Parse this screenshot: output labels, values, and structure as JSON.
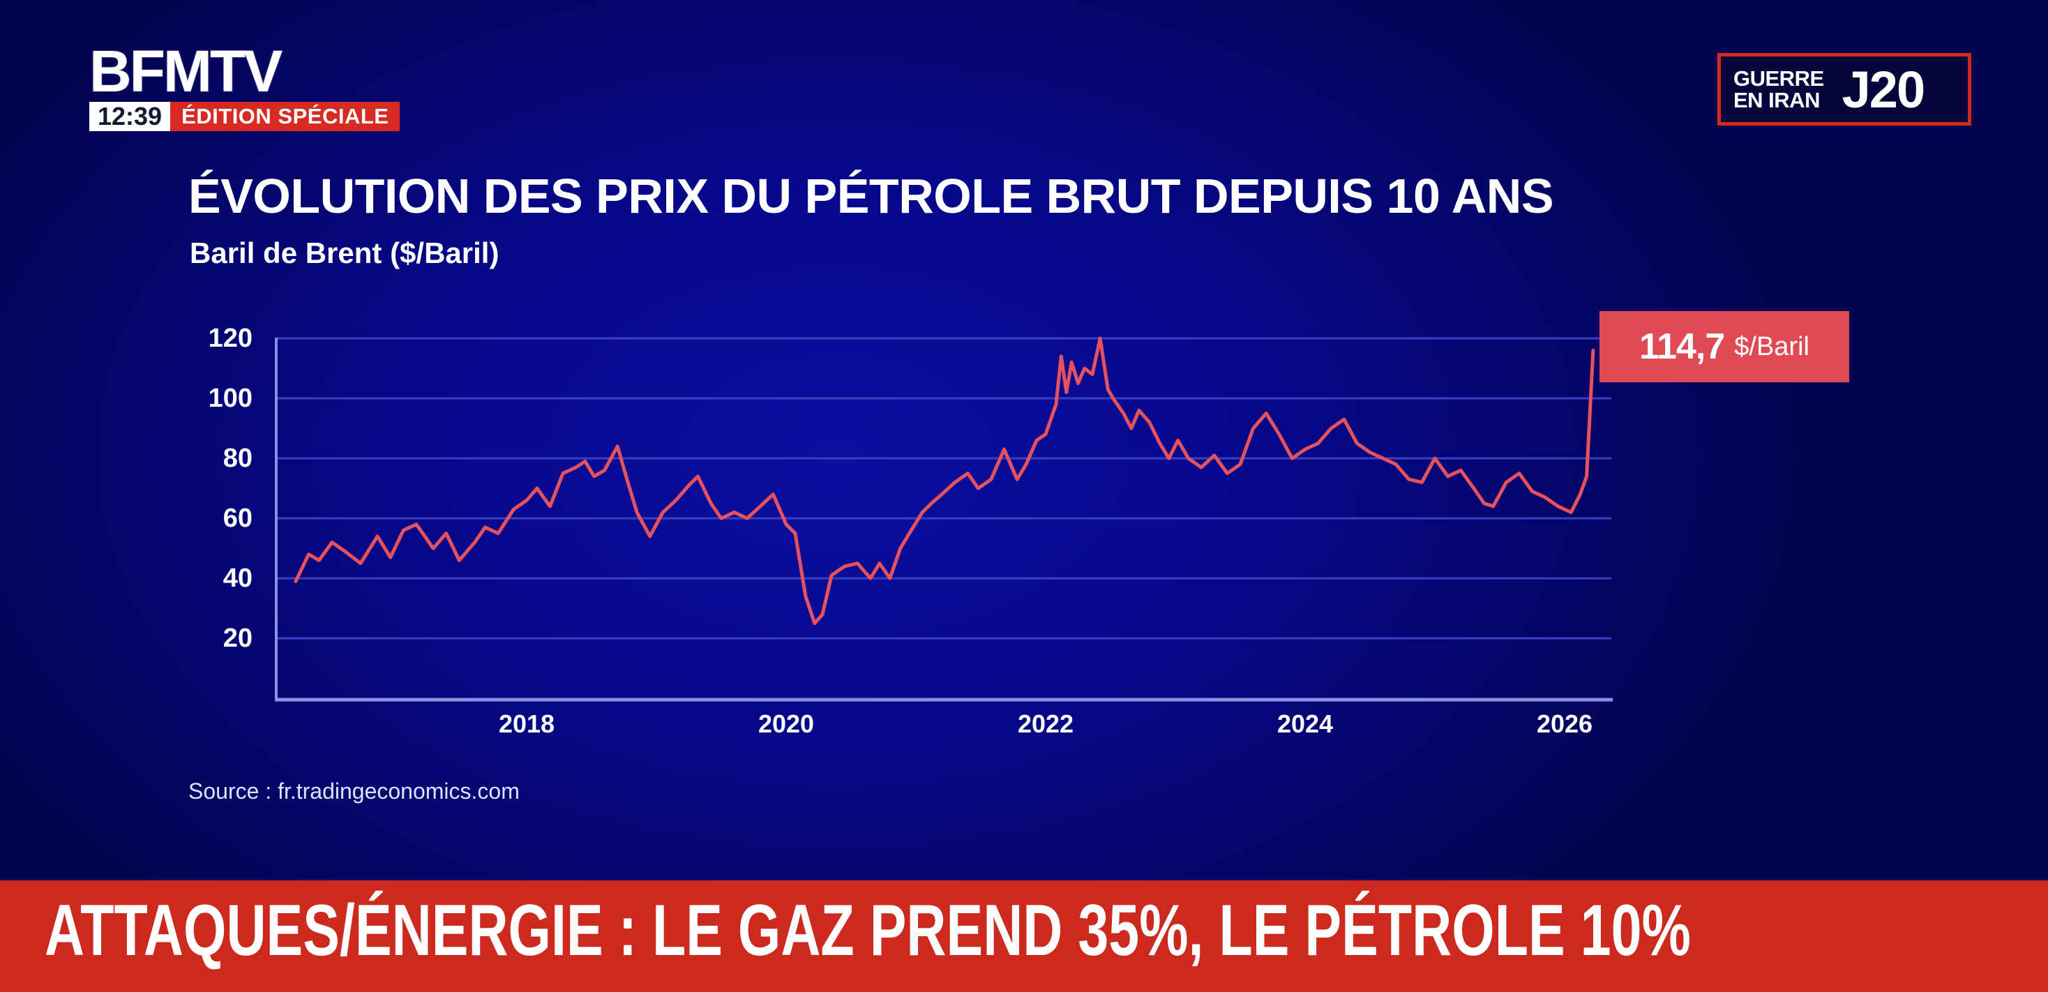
{
  "header": {
    "logo": "BFMTV",
    "clock": "12:39",
    "edition": "ÉDITION SPÉCIALE",
    "badge_line1": "GUERRE",
    "badge_line2": "EN IRAN",
    "badge_day": "J20"
  },
  "title": "ÉVOLUTION DES PRIX DU PÉTROLE BRUT DEPUIS 10 ANS",
  "subtitle": "Baril de Brent ($/Baril)",
  "callout": {
    "value": "114,7",
    "unit": "$/Baril"
  },
  "source": "Source : fr.tradingeconomics.com",
  "banner": {
    "text": "ATTAQUES/ÉNERGIE : LE GAZ PREND 35%, LE PÉTROLE 10%"
  },
  "colors": {
    "line": "#e5525c",
    "callout": "#e04a55",
    "banner": "#cc2a1e",
    "edition": "#d72a22",
    "grid": "#3a3fc0",
    "axis": "#8d90e0"
  },
  "chart_data": {
    "type": "line",
    "title": "ÉVOLUTION DES PRIX DU PÉTROLE BRUT DEPUIS 10 ANS",
    "subtitle": "Baril de Brent ($/Baril)",
    "xlabel": "",
    "ylabel": "$/Baril",
    "ylim": [
      0,
      120
    ],
    "yticks": [
      20,
      40,
      60,
      80,
      100,
      120
    ],
    "xticks": [
      "2018",
      "2020",
      "2022",
      "2024",
      "2026"
    ],
    "grid": true,
    "legend": "none",
    "annotation": "114,7 $/Baril",
    "series": [
      {
        "name": "Brent",
        "x": [
          2016.22,
          2016.32,
          2016.4,
          2016.5,
          2016.6,
          2016.72,
          2016.85,
          2016.95,
          2017.05,
          2017.15,
          2017.28,
          2017.38,
          2017.48,
          2017.6,
          2017.68,
          2017.78,
          2017.9,
          2018.0,
          2018.08,
          2018.18,
          2018.28,
          2018.38,
          2018.45,
          2018.52,
          2018.6,
          2018.7,
          2018.78,
          2018.85,
          2018.95,
          2019.05,
          2019.15,
          2019.25,
          2019.32,
          2019.42,
          2019.5,
          2019.6,
          2019.7,
          2019.8,
          2019.9,
          2020.0,
          2020.07,
          2020.15,
          2020.22,
          2020.28,
          2020.35,
          2020.45,
          2020.55,
          2020.65,
          2020.72,
          2020.8,
          2020.88,
          2020.95,
          2021.05,
          2021.12,
          2021.2,
          2021.3,
          2021.4,
          2021.48,
          2021.58,
          2021.68,
          2021.78,
          2021.85,
          2021.93,
          2022.0,
          2022.08,
          2022.12,
          2022.16,
          2022.2,
          2022.25,
          2022.3,
          2022.36,
          2022.42,
          2022.48,
          2022.52,
          2022.6,
          2022.66,
          2022.72,
          2022.8,
          2022.88,
          2022.95,
          2023.02,
          2023.1,
          2023.2,
          2023.3,
          2023.4,
          2023.5,
          2023.6,
          2023.7,
          2023.8,
          2023.9,
          2024.0,
          2024.1,
          2024.2,
          2024.3,
          2024.4,
          2024.5,
          2024.6,
          2024.7,
          2024.8,
          2024.9,
          2025.0,
          2025.1,
          2025.2,
          2025.3,
          2025.38,
          2025.45,
          2025.55,
          2025.65,
          2025.75,
          2025.85,
          2025.95,
          2026.05,
          2026.12,
          2026.17,
          2026.22
        ],
        "values": [
          39,
          48,
          46,
          52,
          49,
          45,
          54,
          47,
          56,
          58,
          50,
          55,
          46,
          52,
          57,
          55,
          63,
          66,
          70,
          64,
          75,
          77,
          79,
          74,
          76,
          84,
          72,
          62,
          54,
          62,
          66,
          71,
          74,
          65,
          60,
          62,
          60,
          64,
          68,
          58,
          55,
          34,
          25,
          28,
          41,
          44,
          45,
          40,
          45,
          40,
          50,
          55,
          62,
          65,
          68,
          72,
          75,
          70,
          73,
          83,
          73,
          78,
          86,
          88,
          98,
          114,
          102,
          112,
          105,
          110,
          108,
          120,
          103,
          100,
          95,
          90,
          96,
          92,
          85,
          80,
          86,
          80,
          77,
          81,
          75,
          78,
          90,
          95,
          88,
          80,
          83,
          85,
          90,
          93,
          85,
          82,
          80,
          78,
          73,
          72,
          80,
          74,
          76,
          70,
          65,
          64,
          72,
          75,
          69,
          67,
          64,
          62,
          68,
          74,
          116
        ]
      }
    ]
  }
}
